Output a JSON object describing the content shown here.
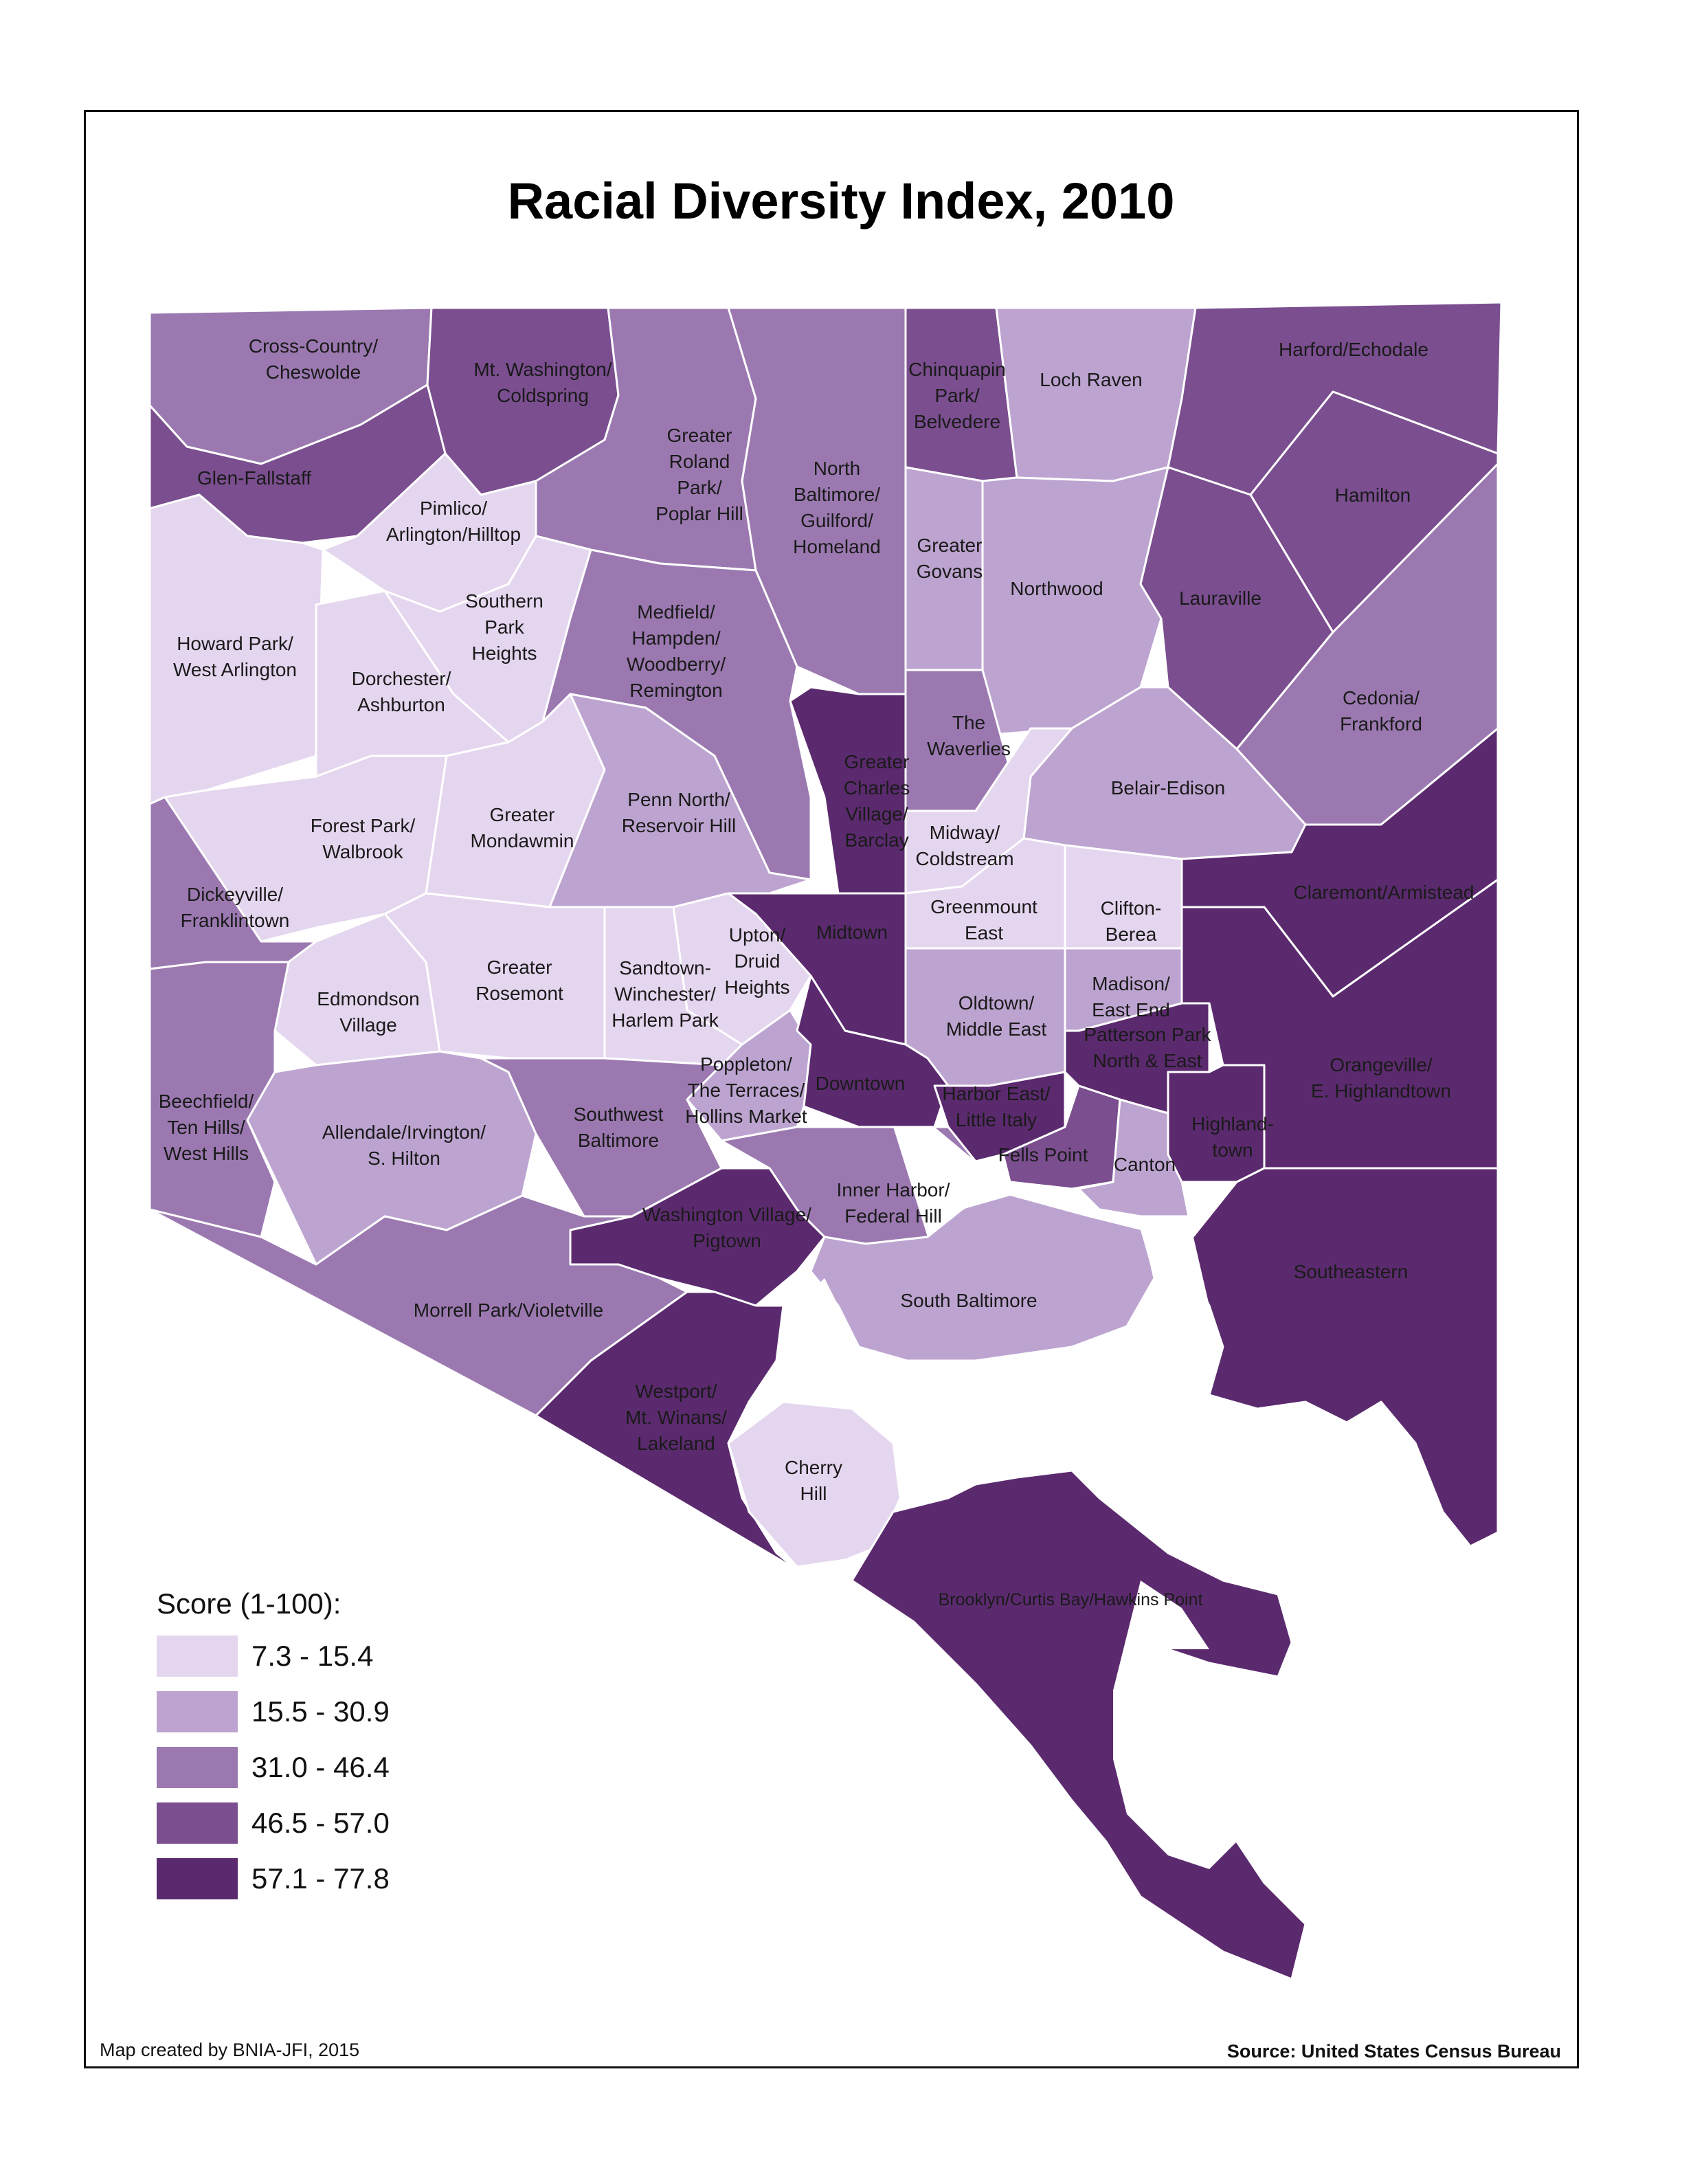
{
  "title": "Racial Diversity Index, 2010",
  "colors": {
    "class1": "#e5d6ef",
    "class2": "#bda4d0",
    "class3": "#9b79b0",
    "class4": "#7a4e8f",
    "class5": "#5b2a6e",
    "water": "#ffffff",
    "boundary": "#ffffff"
  },
  "legend": {
    "title": "Score (1-100):",
    "classes": [
      {
        "label": "7.3 - 15.4",
        "color": "#e5d6ef"
      },
      {
        "label": "15.5 - 30.9",
        "color": "#bda4d0"
      },
      {
        "label": "31.0 - 46.4",
        "color": "#9b79b0"
      },
      {
        "label": "46.5 - 57.0",
        "color": "#7a4e8f"
      },
      {
        "label": "57.1 - 77.8",
        "color": "#5b2a6e"
      }
    ]
  },
  "neighborhoods": [
    {
      "name": "Cross-Country/Cheswolde",
      "lines": [
        "Cross-Country/",
        "Cheswolde"
      ],
      "class": 3
    },
    {
      "name": "Mt. Washington/Coldspring",
      "lines": [
        "Mt. Washington/",
        "Coldspring"
      ],
      "class": 4
    },
    {
      "name": "Glen-Fallstaff",
      "lines": [
        "Glen-Fallstaff"
      ],
      "class": 4
    },
    {
      "name": "Pimlico/Arlington/Hilltop",
      "lines": [
        "Pimlico/",
        "Arlington/Hilltop"
      ],
      "class": 1
    },
    {
      "name": "Greater Roland Park/Poplar Hill",
      "lines": [
        "Greater",
        "Roland",
        "Park/",
        "Poplar Hill"
      ],
      "class": 3
    },
    {
      "name": "North Baltimore/Guilford/Homeland",
      "lines": [
        "North",
        "Baltimore/",
        "Guilford/",
        "Homeland"
      ],
      "class": 3
    },
    {
      "name": "Chinquapin Park/Belvedere",
      "lines": [
        "Chinquapin",
        "Park/",
        "Belvedere"
      ],
      "class": 4
    },
    {
      "name": "Loch Raven",
      "lines": [
        "Loch Raven"
      ],
      "class": 2
    },
    {
      "name": "Harford/Echodale",
      "lines": [
        "Harford/Echodale"
      ],
      "class": 4
    },
    {
      "name": "Hamilton",
      "lines": [
        "Hamilton"
      ],
      "class": 4
    },
    {
      "name": "Howard Park/West Arlington",
      "lines": [
        "Howard Park/",
        "West Arlington"
      ],
      "class": 1
    },
    {
      "name": "Southern Park Heights",
      "lines": [
        "Southern",
        "Park",
        "Heights"
      ],
      "class": 1
    },
    {
      "name": "Dorchester/Ashburton",
      "lines": [
        "Dorchester/",
        "Ashburton"
      ],
      "class": 1
    },
    {
      "name": "Medfield/Hampden/Woodberry/Remington",
      "lines": [
        "Medfield/",
        "Hampden/",
        "Woodberry/",
        "Remington"
      ],
      "class": 3
    },
    {
      "name": "Greater Govans",
      "lines": [
        "Greater",
        "Govans"
      ],
      "class": 2
    },
    {
      "name": "Northwood",
      "lines": [
        "Northwood"
      ],
      "class": 2
    },
    {
      "name": "Lauraville",
      "lines": [
        "Lauraville"
      ],
      "class": 4
    },
    {
      "name": "Cedonia/Frankford",
      "lines": [
        "Cedonia/",
        "Frankford"
      ],
      "class": 3
    },
    {
      "name": "The Waverlies",
      "lines": [
        "The",
        "Waverlies"
      ],
      "class": 3
    },
    {
      "name": "Greater Charles Village/Barclay",
      "lines": [
        "Greater",
        "Charles",
        "Village/",
        "Barclay"
      ],
      "class": 5
    },
    {
      "name": "Forest Park/Walbrook",
      "lines": [
        "Forest Park/",
        "Walbrook"
      ],
      "class": 1
    },
    {
      "name": "Greater Mondawmin",
      "lines": [
        "Greater",
        "Mondawmin"
      ],
      "class": 1
    },
    {
      "name": "Penn North/Reservoir Hill",
      "lines": [
        "Penn North/",
        "Reservoir Hill"
      ],
      "class": 2
    },
    {
      "name": "Belair-Edison",
      "lines": [
        "Belair-Edison"
      ],
      "class": 2
    },
    {
      "name": "Midway/Coldstream",
      "lines": [
        "Midway/",
        "Coldstream"
      ],
      "class": 1
    },
    {
      "name": "Dickeyville/Franklintown",
      "lines": [
        "Dickeyville/",
        "Franklintown"
      ],
      "class": 3
    },
    {
      "name": "Claremont/Armistead",
      "lines": [
        "Claremont/Armistead"
      ],
      "class": 5
    },
    {
      "name": "Greenmount East",
      "lines": [
        "Greenmount",
        "East"
      ],
      "class": 1
    },
    {
      "name": "Clifton-Berea",
      "lines": [
        "Clifton-",
        "Berea"
      ],
      "class": 1
    },
    {
      "name": "Midtown",
      "lines": [
        "Midtown"
      ],
      "class": 5
    },
    {
      "name": "Upton/Druid Heights",
      "lines": [
        "Upton/",
        "Druid",
        "Heights"
      ],
      "class": 1
    },
    {
      "name": "Greater Rosemont",
      "lines": [
        "Greater",
        "Rosemont"
      ],
      "class": 1
    },
    {
      "name": "Sandtown-Winchester/Harlem Park",
      "lines": [
        "Sandtown-",
        "Winchester/",
        "Harlem Park"
      ],
      "class": 1
    },
    {
      "name": "Edmondson Village",
      "lines": [
        "Edmondson",
        "Village"
      ],
      "class": 1
    },
    {
      "name": "Oldtown/Middle East",
      "lines": [
        "Oldtown/",
        "Middle East"
      ],
      "class": 2
    },
    {
      "name": "Madison/East End",
      "lines": [
        "Madison/",
        "East End"
      ],
      "class": 2
    },
    {
      "name": "Patterson Park North & East",
      "lines": [
        "Patterson Park",
        "North & East"
      ],
      "class": 5
    },
    {
      "name": "Orangeville/E. Highlandtown",
      "lines": [
        "Orangeville/",
        "E. Highlandtown"
      ],
      "class": 5
    },
    {
      "name": "Beechfield/Ten Hills/West Hills",
      "lines": [
        "Beechfield/",
        "Ten Hills/",
        "West Hills"
      ],
      "class": 3
    },
    {
      "name": "Allendale/Irvington/S. Hilton",
      "lines": [
        "Allendale/Irvington/",
        "S. Hilton"
      ],
      "class": 2
    },
    {
      "name": "Southwest Baltimore",
      "lines": [
        "Southwest",
        "Baltimore"
      ],
      "class": 3
    },
    {
      "name": "Poppleton/The Terraces/Hollins Market",
      "lines": [
        "Poppleton/",
        "The Terraces/",
        "Hollins Market"
      ],
      "class": 2
    },
    {
      "name": "Downtown",
      "lines": [
        "Downtown"
      ],
      "class": 5
    },
    {
      "name": "Harbor East/Little Italy",
      "lines": [
        "Harbor East/",
        "Little Italy"
      ],
      "class": 5
    },
    {
      "name": "Highlandtown",
      "lines": [
        "Highland-",
        "town"
      ],
      "class": 5
    },
    {
      "name": "Fells Point",
      "lines": [
        "Fells Point"
      ],
      "class": 4
    },
    {
      "name": "Canton",
      "lines": [
        "Canton"
      ],
      "class": 2
    },
    {
      "name": "Inner Harbor/Federal Hill",
      "lines": [
        "Inner Harbor/",
        "Federal Hill"
      ],
      "class": 3
    },
    {
      "name": "Washington Village/Pigtown",
      "lines": [
        "Washington Village/",
        "Pigtown"
      ],
      "class": 5
    },
    {
      "name": "Southeastern",
      "lines": [
        "Southeastern"
      ],
      "class": 5
    },
    {
      "name": "Morrell Park/Violetville",
      "lines": [
        "Morrell Park/Violetville"
      ],
      "class": 3
    },
    {
      "name": "South Baltimore",
      "lines": [
        "South Baltimore"
      ],
      "class": 2
    },
    {
      "name": "Westport/Mt. Winans/Lakeland",
      "lines": [
        "Westport/",
        "Mt. Winans/",
        "Lakeland"
      ],
      "class": 5
    },
    {
      "name": "Cherry Hill",
      "lines": [
        "Cherry",
        "Hill"
      ],
      "class": 1
    },
    {
      "name": "Brooklyn/Curtis Bay/Hawkins Point",
      "lines": [
        "Brooklyn/Curtis Bay/Hawkins Point"
      ],
      "class": 5
    }
  ],
  "credit": "Map created by BNIA-JFI, 2015",
  "source": "Source: United States Census Bureau"
}
